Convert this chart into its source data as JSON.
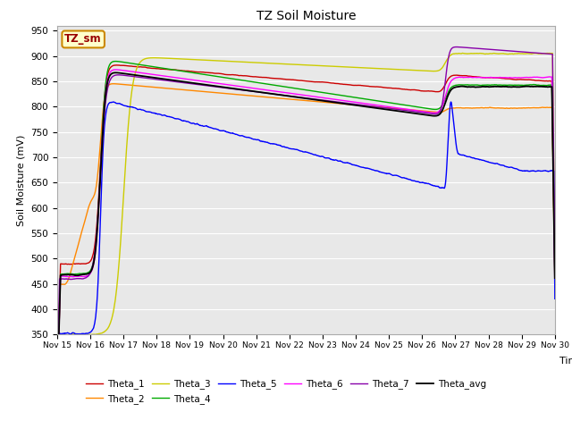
{
  "title": "TZ Soil Moisture",
  "xlabel": "Time",
  "ylabel": "Soil Moisture (mV)",
  "ylim": [
    350,
    960
  ],
  "yticks": [
    350,
    400,
    450,
    500,
    550,
    600,
    650,
    700,
    750,
    800,
    850,
    900,
    950
  ],
  "plot_bg": "#e8e8e8",
  "fig_bg": "#ffffff",
  "label_box_text": "TZ_sm",
  "label_box_face": "#ffffcc",
  "label_box_edge": "#cc8800",
  "label_text_color": "#990000",
  "colors": {
    "Theta_1": "#cc0000",
    "Theta_2": "#ff8800",
    "Theta_3": "#cccc00",
    "Theta_4": "#00aa00",
    "Theta_5": "#0000ff",
    "Theta_6": "#ff00ff",
    "Theta_7": "#8800aa",
    "Theta_avg": "#000000"
  },
  "xlabels": [
    "Nov 15",
    "Nov 16",
    "Nov 17",
    "Nov 18",
    "Nov 19",
    "Nov 20",
    "Nov 21",
    "Nov 22",
    "Nov 23",
    "Nov 24",
    "Nov 25",
    "Nov 26",
    "Nov 27",
    "Nov 28",
    "Nov 29",
    "Nov 30"
  ],
  "rise1": 1.3,
  "rise2": 11.7,
  "n_pts": 1500
}
